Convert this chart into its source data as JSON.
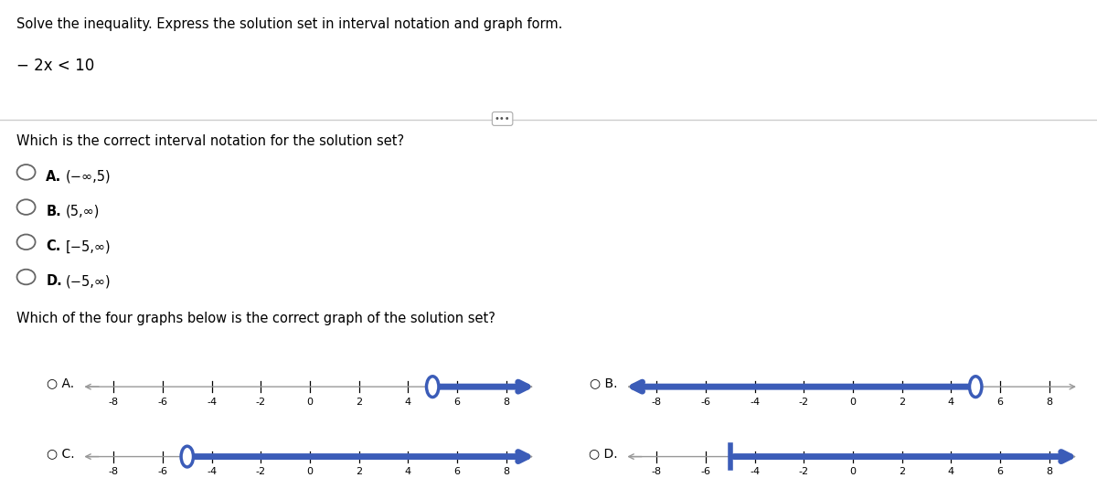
{
  "title": "Solve the inequality. Express the solution set in interval notation and graph form.",
  "equation": "− 2x < 10",
  "question1": "Which is the correct interval notation for the solution set?",
  "options": [
    [
      "A.",
      "(−∞,5)"
    ],
    [
      "B.",
      "(5,∞)"
    ],
    [
      "C.",
      "[−5,∞)"
    ],
    [
      "D.",
      "(−5,∞)"
    ]
  ],
  "question2": "Which of the four graphs below is the correct graph of the solution set?",
  "line_color": "#3B5CB8",
  "axis_color": "#999999",
  "tick_positions": [
    -8,
    -6,
    -4,
    -2,
    0,
    2,
    4,
    6,
    8
  ],
  "graphs": [
    {
      "label": "A",
      "type": "open_right",
      "point": 5
    },
    {
      "label": "B",
      "type": "open_left",
      "point": 5
    },
    {
      "label": "C",
      "type": "open_right",
      "point": -5
    },
    {
      "label": "D",
      "type": "closed_right",
      "point": -5
    }
  ]
}
